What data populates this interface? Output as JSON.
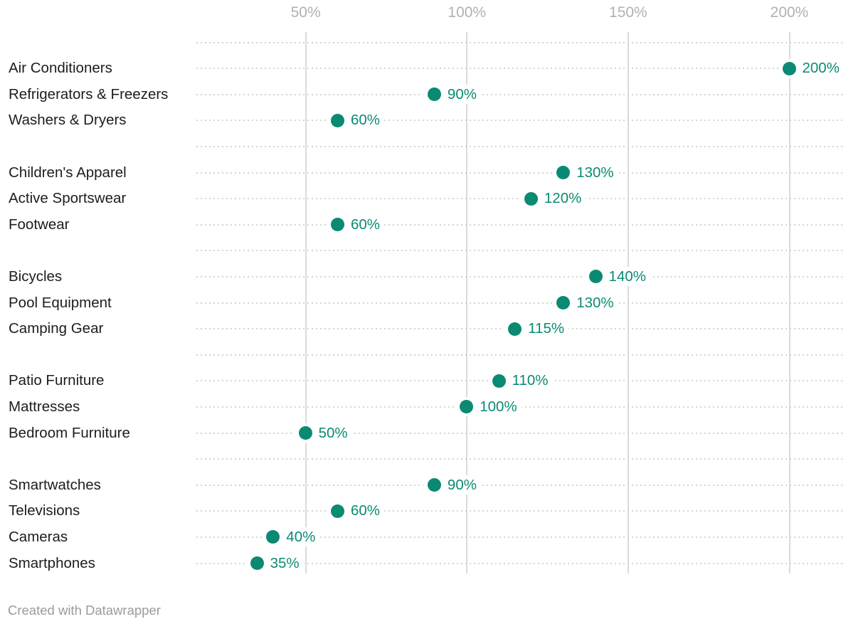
{
  "footer": {
    "credit": "Created with Datawrapper"
  },
  "colors": {
    "accent": "#0b8a73",
    "category_label": "#1d1d1d",
    "axis_label": "#b1b1b1",
    "gridline": "#dadada",
    "dotted_line": "#d4d4d4",
    "footer_text": "#9b9b9b",
    "background": "#ffffff"
  },
  "chart_data": {
    "type": "scatter",
    "variant": "dot-plot",
    "title": "",
    "xlabel": "",
    "ylabel": "",
    "unit": "%",
    "xlim": [
      0,
      217
    ],
    "legend": "none",
    "grid": "vertical solid gridlines at ticks; dotted horizontal leader line per row",
    "x_ticks": [
      {
        "value": 50,
        "label": "50%"
      },
      {
        "value": 100,
        "label": "100%"
      },
      {
        "value": 150,
        "label": "150%"
      },
      {
        "value": 200,
        "label": "200%"
      }
    ],
    "groups": [
      {
        "items": [
          {
            "label": "Air Conditioners",
            "value": 200,
            "value_label": "200%"
          },
          {
            "label": "Refrigerators & Freezers",
            "value": 90,
            "value_label": "90%"
          },
          {
            "label": "Washers & Dryers",
            "value": 60,
            "value_label": "60%"
          }
        ]
      },
      {
        "items": [
          {
            "label": "Children's Apparel",
            "value": 130,
            "value_label": "130%"
          },
          {
            "label": "Active Sportswear",
            "value": 120,
            "value_label": "120%"
          },
          {
            "label": "Footwear",
            "value": 60,
            "value_label": "60%"
          }
        ]
      },
      {
        "items": [
          {
            "label": "Bicycles",
            "value": 140,
            "value_label": "140%"
          },
          {
            "label": "Pool Equipment",
            "value": 130,
            "value_label": "130%"
          },
          {
            "label": "Camping Gear",
            "value": 115,
            "value_label": "115%"
          }
        ]
      },
      {
        "items": [
          {
            "label": "Patio Furniture",
            "value": 110,
            "value_label": "110%"
          },
          {
            "label": "Mattresses",
            "value": 100,
            "value_label": "100%"
          },
          {
            "label": "Bedroom Furniture",
            "value": 50,
            "value_label": "50%"
          }
        ]
      },
      {
        "items": [
          {
            "label": "Smartwatches",
            "value": 90,
            "value_label": "90%"
          },
          {
            "label": "Televisions",
            "value": 60,
            "value_label": "60%"
          },
          {
            "label": "Cameras",
            "value": 40,
            "value_label": "40%"
          },
          {
            "label": "Smartphones",
            "value": 35,
            "value_label": "35%"
          }
        ]
      }
    ]
  }
}
